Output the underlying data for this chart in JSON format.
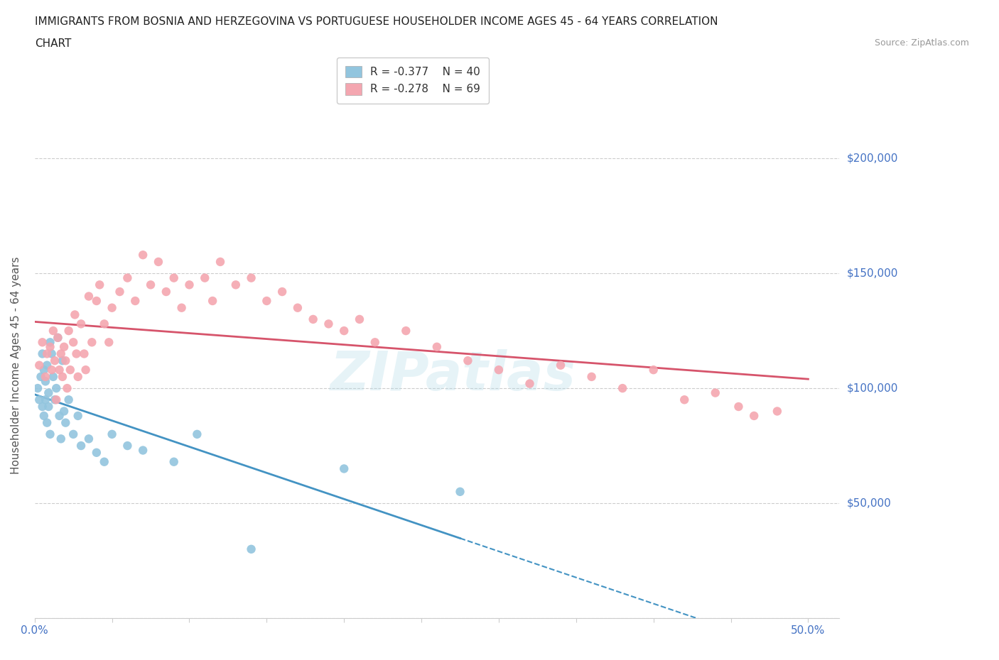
{
  "title_line1": "IMMIGRANTS FROM BOSNIA AND HERZEGOVINA VS PORTUGUESE HOUSEHOLDER INCOME AGES 45 - 64 YEARS CORRELATION",
  "title_line2": "CHART",
  "source": "Source: ZipAtlas.com",
  "ylabel": "Householder Income Ages 45 - 64 years",
  "xlim": [
    0.0,
    0.52
  ],
  "ylim": [
    0,
    220000
  ],
  "yticks": [
    0,
    50000,
    100000,
    150000,
    200000
  ],
  "ytick_labels": [
    "",
    "$50,000",
    "$100,000",
    "$150,000",
    "$200,000"
  ],
  "xticks": [
    0.0,
    0.05,
    0.1,
    0.15,
    0.2,
    0.25,
    0.3,
    0.35,
    0.4,
    0.45,
    0.5
  ],
  "legend_r1": "R = -0.377",
  "legend_n1": "N = 40",
  "legend_r2": "R = -0.278",
  "legend_n2": "N = 69",
  "color_bosnia": "#92c5de",
  "color_portuguese": "#f4a6b0",
  "color_line_bosnia": "#4393c3",
  "color_line_portuguese": "#d6546b",
  "color_axis_label": "#4472c4",
  "watermark": "ZIPatlas",
  "bosnia_scatter_x": [
    0.002,
    0.003,
    0.004,
    0.005,
    0.005,
    0.006,
    0.006,
    0.007,
    0.007,
    0.008,
    0.008,
    0.009,
    0.009,
    0.01,
    0.01,
    0.011,
    0.012,
    0.013,
    0.014,
    0.015,
    0.016,
    0.017,
    0.018,
    0.019,
    0.02,
    0.022,
    0.025,
    0.028,
    0.03,
    0.035,
    0.04,
    0.045,
    0.05,
    0.06,
    0.07,
    0.09,
    0.105,
    0.14,
    0.2,
    0.275
  ],
  "bosnia_scatter_y": [
    100000,
    95000,
    105000,
    92000,
    115000,
    88000,
    108000,
    95000,
    103000,
    110000,
    85000,
    98000,
    92000,
    120000,
    80000,
    115000,
    105000,
    95000,
    100000,
    122000,
    88000,
    78000,
    112000,
    90000,
    85000,
    95000,
    80000,
    88000,
    75000,
    78000,
    72000,
    68000,
    80000,
    75000,
    73000,
    68000,
    80000,
    30000,
    65000,
    55000
  ],
  "portuguese_scatter_x": [
    0.003,
    0.005,
    0.007,
    0.008,
    0.01,
    0.011,
    0.012,
    0.013,
    0.014,
    0.015,
    0.016,
    0.017,
    0.018,
    0.019,
    0.02,
    0.021,
    0.022,
    0.023,
    0.025,
    0.026,
    0.027,
    0.028,
    0.03,
    0.032,
    0.033,
    0.035,
    0.037,
    0.04,
    0.042,
    0.045,
    0.048,
    0.05,
    0.055,
    0.06,
    0.065,
    0.07,
    0.075,
    0.08,
    0.085,
    0.09,
    0.095,
    0.1,
    0.11,
    0.115,
    0.12,
    0.13,
    0.14,
    0.15,
    0.16,
    0.17,
    0.18,
    0.19,
    0.2,
    0.21,
    0.22,
    0.24,
    0.26,
    0.28,
    0.3,
    0.32,
    0.34,
    0.36,
    0.38,
    0.4,
    0.42,
    0.44,
    0.455,
    0.465,
    0.48
  ],
  "portuguese_scatter_y": [
    110000,
    120000,
    105000,
    115000,
    118000,
    108000,
    125000,
    112000,
    95000,
    122000,
    108000,
    115000,
    105000,
    118000,
    112000,
    100000,
    125000,
    108000,
    120000,
    132000,
    115000,
    105000,
    128000,
    115000,
    108000,
    140000,
    120000,
    138000,
    145000,
    128000,
    120000,
    135000,
    142000,
    148000,
    138000,
    158000,
    145000,
    155000,
    142000,
    148000,
    135000,
    145000,
    148000,
    138000,
    155000,
    145000,
    148000,
    138000,
    142000,
    135000,
    130000,
    128000,
    125000,
    130000,
    120000,
    125000,
    118000,
    112000,
    108000,
    102000,
    110000,
    105000,
    100000,
    108000,
    95000,
    98000,
    92000,
    88000,
    90000
  ],
  "background_color": "#ffffff",
  "grid_color": "#cccccc"
}
